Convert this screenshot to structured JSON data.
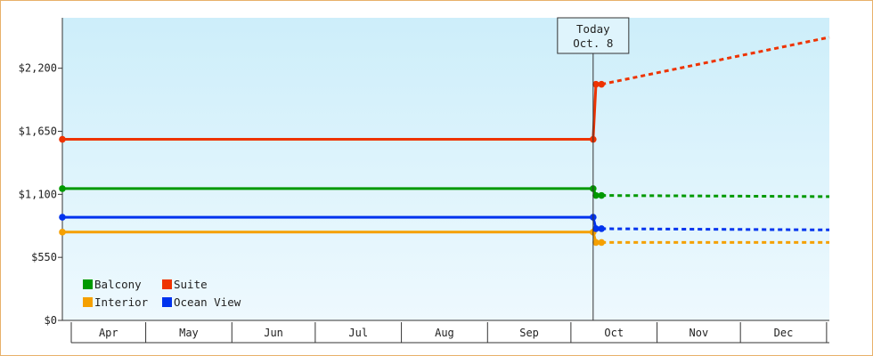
{
  "chart_data": {
    "type": "line",
    "title": "",
    "xlabel": "",
    "ylabel": "",
    "ylim": [
      0,
      2640
    ],
    "yticks": [
      0,
      550,
      1100,
      1650,
      2200
    ],
    "ytick_labels": [
      "$0",
      "$550",
      "$1,100",
      "$1,650",
      "$2,200"
    ],
    "xlim": [
      0,
      276
    ],
    "x_months": [
      {
        "label": "Apr",
        "start": 0,
        "end": 30
      },
      {
        "label": "May",
        "start": 30,
        "end": 61
      },
      {
        "label": "Jun",
        "start": 61,
        "end": 91
      },
      {
        "label": "Jul",
        "start": 91,
        "end": 122
      },
      {
        "label": "Aug",
        "start": 122,
        "end": 153
      },
      {
        "label": "Sep",
        "start": 153,
        "end": 183
      },
      {
        "label": "Oct",
        "start": 183,
        "end": 214
      },
      {
        "label": "Nov",
        "start": 214,
        "end": 244
      },
      {
        "label": "Dec",
        "start": 244,
        "end": 275
      }
    ],
    "today": {
      "x": 191,
      "line1": "Today",
      "line2": "Oct. 8"
    },
    "grid": false,
    "legend_position": "bottom-left",
    "series": [
      {
        "name": "Balcony",
        "color": "#009900",
        "history": [
          [
            0,
            1150
          ],
          [
            191,
            1150
          ],
          [
            192,
            1090
          ],
          [
            194,
            1090
          ]
        ],
        "forecast": [
          [
            194,
            1090
          ],
          [
            276,
            1080
          ]
        ]
      },
      {
        "name": "Suite",
        "color": "#ee3300",
        "history": [
          [
            0,
            1580
          ],
          [
            191,
            1580
          ],
          [
            192,
            2060
          ],
          [
            194,
            2060
          ]
        ],
        "forecast": [
          [
            194,
            2060
          ],
          [
            276,
            2470
          ]
        ]
      },
      {
        "name": "Interior",
        "color": "#f5a000",
        "history": [
          [
            0,
            770
          ],
          [
            191,
            770
          ],
          [
            192,
            680
          ],
          [
            194,
            680
          ]
        ],
        "forecast": [
          [
            194,
            680
          ],
          [
            276,
            680
          ]
        ]
      },
      {
        "name": "Ocean View",
        "color": "#0033ee",
        "history": [
          [
            0,
            900
          ],
          [
            191,
            900
          ],
          [
            192,
            800
          ],
          [
            194,
            800
          ]
        ],
        "forecast": [
          [
            194,
            800
          ],
          [
            276,
            790
          ]
        ]
      }
    ]
  }
}
